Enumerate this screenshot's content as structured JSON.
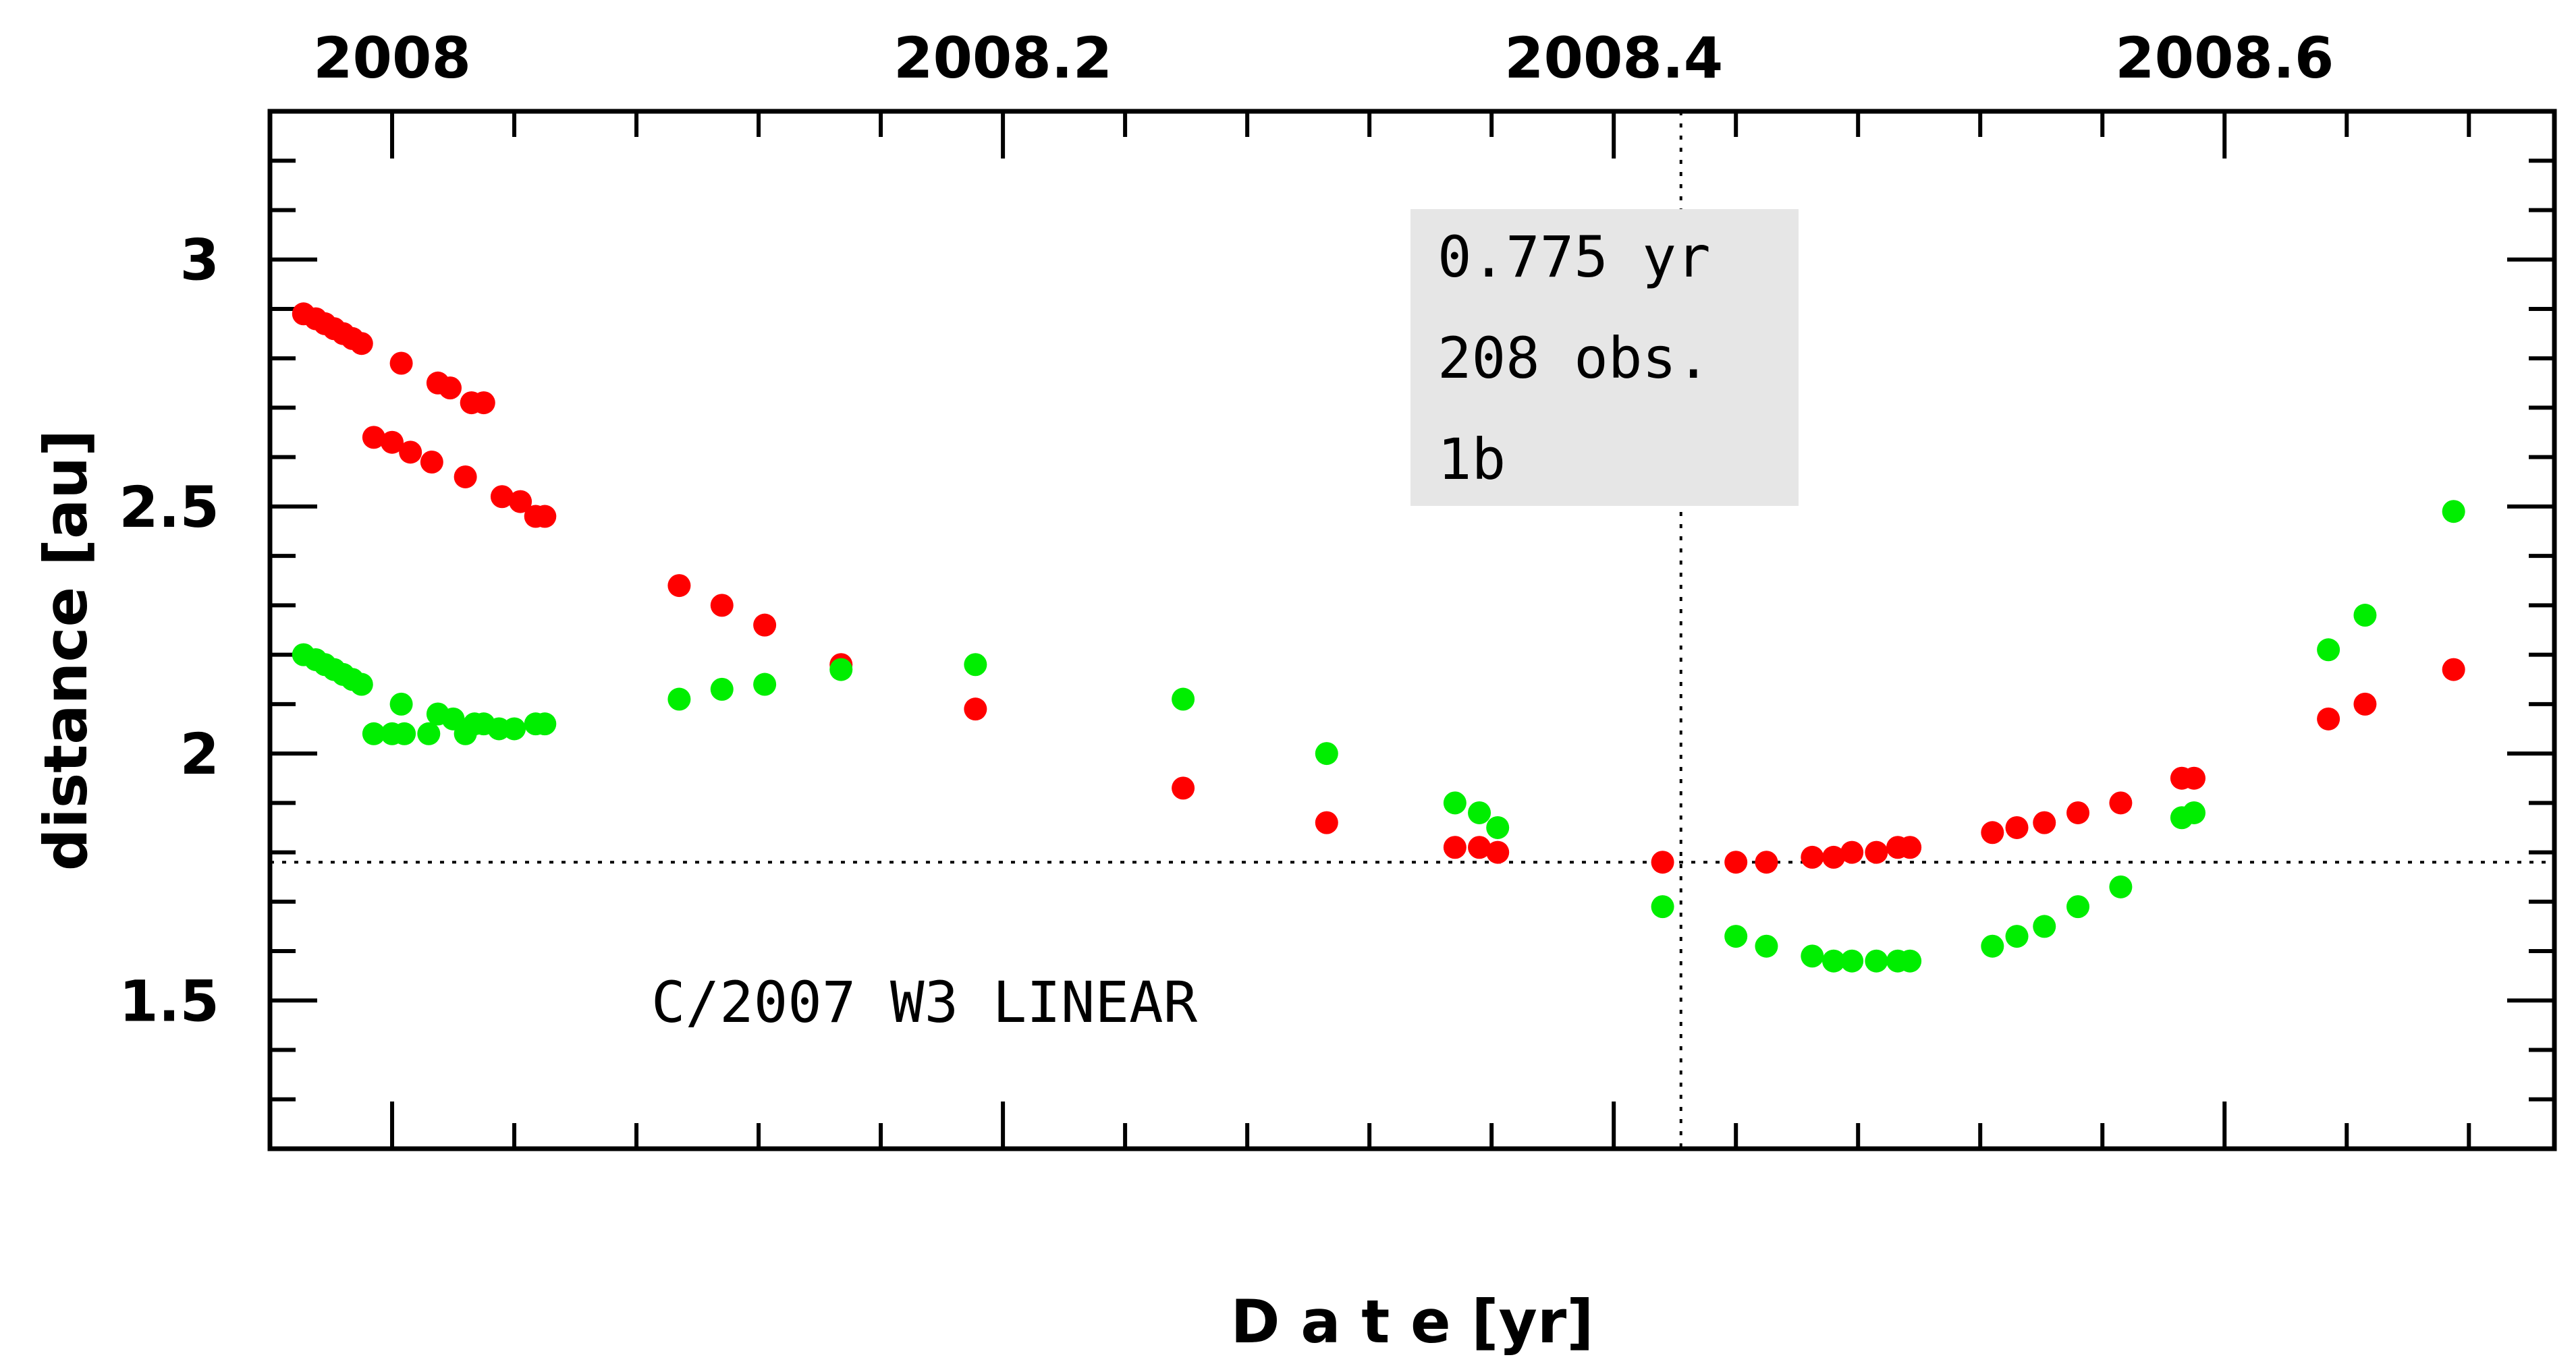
{
  "chart_data": {
    "type": "scatter",
    "title": "",
    "xlabel": "D a t e [yr]",
    "ylabel": "distance [au]",
    "xlim": [
      2007.96,
      2008.708
    ],
    "ylim": [
      1.2,
      3.3
    ],
    "x_ticks": [
      2008,
      2008.2,
      2008.4,
      2008.6
    ],
    "x_tick_labels": [
      "2008",
      "2008.2",
      "2008.4",
      "2008.6"
    ],
    "x_tick_labels_position": "top",
    "y_ticks": [
      1.5,
      2,
      2.5,
      3
    ],
    "y_tick_labels": [
      "1.5",
      "2",
      "2.5",
      "3"
    ],
    "reference_lines": {
      "vertical_x": 2008.422,
      "horizontal_y": 1.78,
      "style": "dotted"
    },
    "annotation_box": {
      "lines": [
        "0.775 yr",
        "208 obs.",
        "1b"
      ],
      "background": "#e6e6e6",
      "position": "top-center"
    },
    "object_label": "C/2007 W3 LINEAR",
    "grid": false,
    "series": [
      {
        "name": "red",
        "color": "#ff0000",
        "points": [
          [
            2007.971,
            2.89
          ],
          [
            2007.975,
            2.88
          ],
          [
            2007.978,
            2.87
          ],
          [
            2007.981,
            2.86
          ],
          [
            2007.984,
            2.85
          ],
          [
            2007.987,
            2.84
          ],
          [
            2007.99,
            2.83
          ],
          [
            2008.003,
            2.79
          ],
          [
            2008.015,
            2.75
          ],
          [
            2008.019,
            2.74
          ],
          [
            2008.026,
            2.71
          ],
          [
            2008.03,
            2.71
          ],
          [
            2007.994,
            2.64
          ],
          [
            2008.0,
            2.63
          ],
          [
            2008.006,
            2.61
          ],
          [
            2008.013,
            2.59
          ],
          [
            2008.024,
            2.56
          ],
          [
            2008.036,
            2.52
          ],
          [
            2008.042,
            2.51
          ],
          [
            2008.047,
            2.48
          ],
          [
            2008.05,
            2.48
          ],
          [
            2008.094,
            2.34
          ],
          [
            2008.108,
            2.3
          ],
          [
            2008.122,
            2.26
          ],
          [
            2008.147,
            2.18
          ],
          [
            2008.191,
            2.09
          ],
          [
            2008.259,
            1.93
          ],
          [
            2008.306,
            1.86
          ],
          [
            2008.348,
            1.81
          ],
          [
            2008.356,
            1.81
          ],
          [
            2008.362,
            1.8
          ],
          [
            2008.416,
            1.78
          ],
          [
            2008.44,
            1.78
          ],
          [
            2008.45,
            1.78
          ],
          [
            2008.465,
            1.79
          ],
          [
            2008.472,
            1.79
          ],
          [
            2008.478,
            1.8
          ],
          [
            2008.486,
            1.8
          ],
          [
            2008.493,
            1.81
          ],
          [
            2008.497,
            1.81
          ],
          [
            2008.524,
            1.84
          ],
          [
            2008.532,
            1.85
          ],
          [
            2008.541,
            1.86
          ],
          [
            2008.552,
            1.88
          ],
          [
            2008.566,
            1.9
          ],
          [
            2008.586,
            1.95
          ],
          [
            2008.59,
            1.95
          ],
          [
            2008.634,
            2.07
          ],
          [
            2008.646,
            2.1
          ],
          [
            2008.675,
            2.17
          ]
        ]
      },
      {
        "name": "green",
        "color": "#00ee00",
        "points": [
          [
            2007.971,
            2.2
          ],
          [
            2007.975,
            2.19
          ],
          [
            2007.978,
            2.18
          ],
          [
            2007.981,
            2.17
          ],
          [
            2007.984,
            2.16
          ],
          [
            2007.987,
            2.15
          ],
          [
            2007.99,
            2.14
          ],
          [
            2008.003,
            2.1
          ],
          [
            2008.015,
            2.08
          ],
          [
            2008.02,
            2.07
          ],
          [
            2008.027,
            2.06
          ],
          [
            2008.03,
            2.06
          ],
          [
            2007.994,
            2.04
          ],
          [
            2008.0,
            2.04
          ],
          [
            2008.004,
            2.04
          ],
          [
            2008.012,
            2.04
          ],
          [
            2008.024,
            2.04
          ],
          [
            2008.035,
            2.05
          ],
          [
            2008.04,
            2.05
          ],
          [
            2008.047,
            2.06
          ],
          [
            2008.05,
            2.06
          ],
          [
            2008.094,
            2.11
          ],
          [
            2008.108,
            2.13
          ],
          [
            2008.122,
            2.14
          ],
          [
            2008.147,
            2.17
          ],
          [
            2008.191,
            2.18
          ],
          [
            2008.259,
            2.11
          ],
          [
            2008.306,
            2.0
          ],
          [
            2008.348,
            1.9
          ],
          [
            2008.356,
            1.88
          ],
          [
            2008.362,
            1.85
          ],
          [
            2008.416,
            1.69
          ],
          [
            2008.44,
            1.63
          ],
          [
            2008.45,
            1.61
          ],
          [
            2008.465,
            1.59
          ],
          [
            2008.472,
            1.58
          ],
          [
            2008.478,
            1.58
          ],
          [
            2008.486,
            1.58
          ],
          [
            2008.493,
            1.58
          ],
          [
            2008.497,
            1.58
          ],
          [
            2008.524,
            1.61
          ],
          [
            2008.532,
            1.63
          ],
          [
            2008.541,
            1.65
          ],
          [
            2008.552,
            1.69
          ],
          [
            2008.566,
            1.73
          ],
          [
            2008.586,
            1.87
          ],
          [
            2008.59,
            1.88
          ],
          [
            2008.634,
            2.21
          ],
          [
            2008.646,
            2.28
          ],
          [
            2008.675,
            2.49
          ]
        ]
      }
    ]
  }
}
